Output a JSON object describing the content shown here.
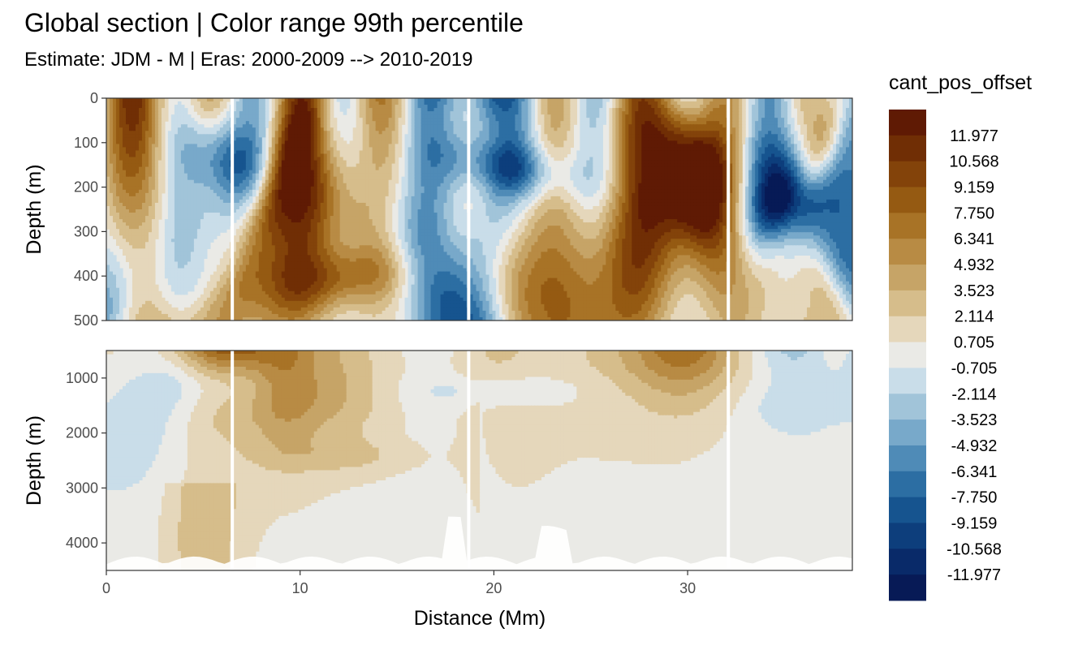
{
  "chart_data": {
    "type": "heatmap",
    "title": "Global section | Color range 99th percentile",
    "subtitle": "Estimate: JDM - M | Eras: 2000-2009 --> 2010-2019",
    "xlabel": "Distance (Mm)",
    "ylabel": "Depth (m)",
    "xlim": [
      0,
      38.5
    ],
    "x_ticks": [
      0,
      10,
      20,
      30
    ],
    "panels": [
      {
        "ylim": [
          0,
          500
        ],
        "y_ticks": [
          0,
          100,
          200,
          300,
          400,
          500
        ],
        "y_reversed": true
      },
      {
        "ylim": [
          500,
          4500
        ],
        "y_ticks": [
          1000,
          2000,
          3000,
          4000
        ],
        "y_reversed": true
      }
    ],
    "legend": {
      "title": "cant_pos_offset",
      "placement": "right",
      "labels": [
        "11.977",
        "10.568",
        "9.159",
        "7.750",
        "6.341",
        "4.932",
        "3.523",
        "2.114",
        "0.705",
        "-0.705",
        "-2.114",
        "-3.523",
        "-4.932",
        "-6.341",
        "-7.750",
        "-9.159",
        "-10.568",
        "-11.977"
      ],
      "colors": [
        "#5f1a04",
        "#702e05",
        "#83430a",
        "#955a12",
        "#a87326",
        "#b88b44",
        "#c6a467",
        "#d6bd8b",
        "#e5d7bb",
        "#eaeae6",
        "#c9dde9",
        "#a1c4d9",
        "#78a9ca",
        "#4f8bb7",
        "#2c6ea3",
        "#16548f",
        "#0d3e7c",
        "#092a69",
        "#071a56"
      ]
    },
    "missing_data_color": "#ffffff"
  }
}
